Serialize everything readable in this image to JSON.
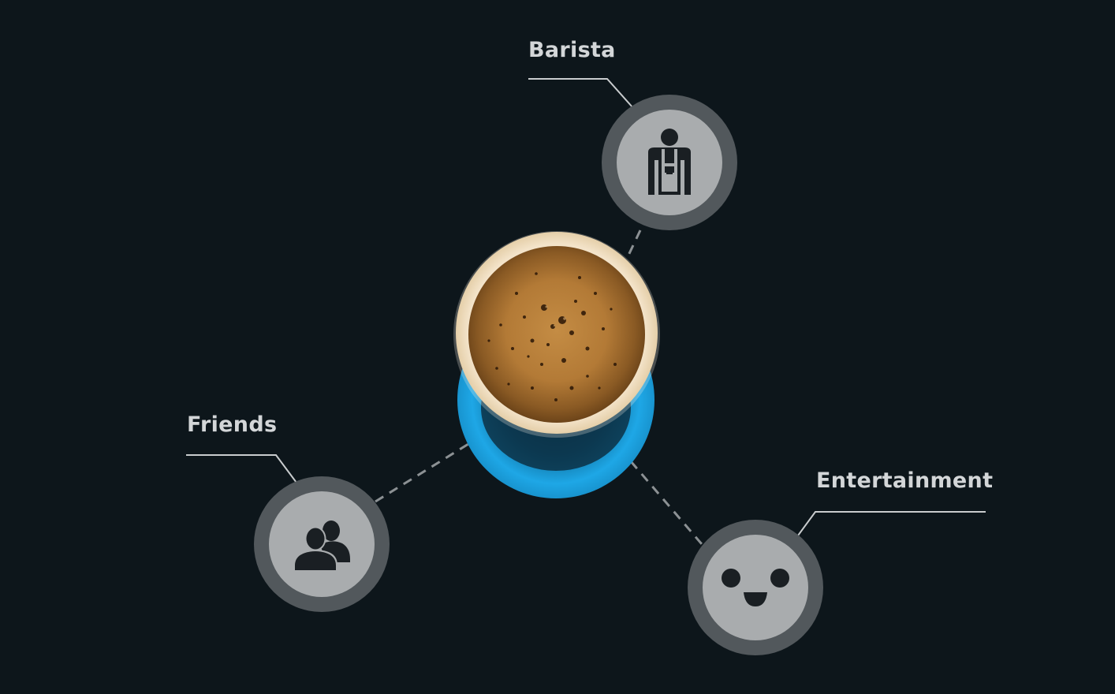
{
  "nodes": {
    "barista": {
      "label": "Barista",
      "icon": "barista-icon"
    },
    "friends": {
      "label": "Friends",
      "icon": "friends-icon"
    },
    "entertainment": {
      "label": "Entertainment",
      "icon": "smiley-face-icon"
    }
  },
  "center": {
    "icon": "coffee-cup-icon"
  },
  "colors": {
    "background": "#0d161b",
    "node_ring": "#52585c",
    "node_fill": "#a9acae",
    "icon": "#1a1f23",
    "label": "#d3d6d8",
    "glow": "#1ea7e6"
  }
}
